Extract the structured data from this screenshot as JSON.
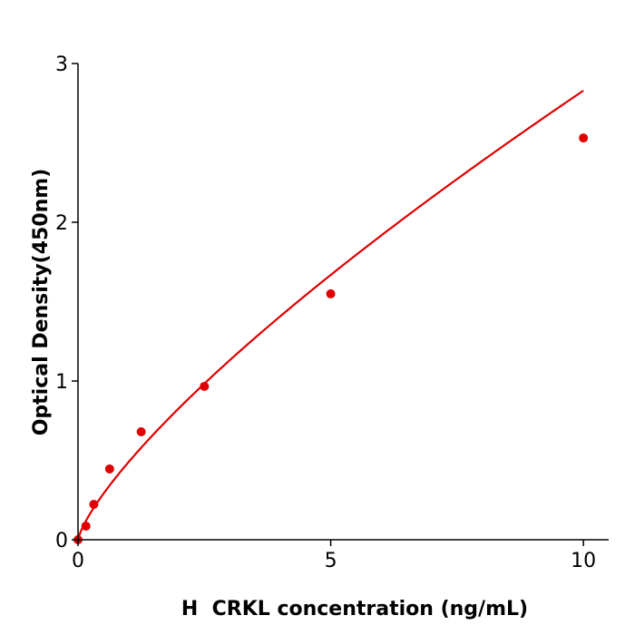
{
  "chart_data": {
    "type": "scatter",
    "title": "",
    "xlabel": "H  CRKL concentration (ng/mL)",
    "ylabel": "Optical Density(450nm)",
    "xlim": [
      0,
      10.5
    ],
    "ylim": [
      0,
      3
    ],
    "xticks": [
      "0",
      "5",
      "10"
    ],
    "yticks": [
      "0",
      "1",
      "2",
      "3"
    ],
    "grid": false,
    "legend": "none",
    "color": "#e00000",
    "fit_line": true,
    "series": [
      {
        "x": [
          0,
          0.156,
          0.3125,
          0.625,
          1.25,
          2.5,
          5,
          10
        ],
        "y": [
          0.0,
          0.086,
          0.223,
          0.446,
          0.68,
          0.966,
          1.549,
          2.531
        ]
      }
    ]
  }
}
